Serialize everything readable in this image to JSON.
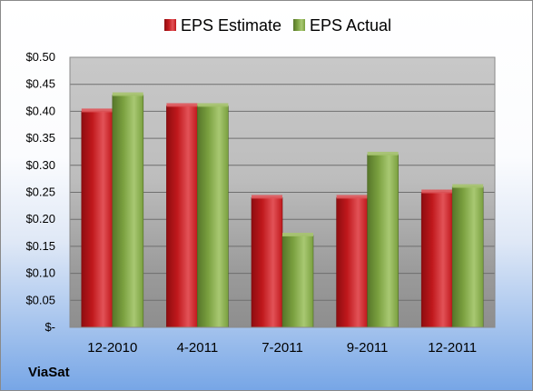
{
  "company": "ViaSat",
  "chart_data": {
    "type": "bar",
    "categories": [
      "12-2010",
      "4-2011",
      "7-2011",
      "9-2011",
      "12-2011"
    ],
    "series": [
      {
        "name": "EPS Estimate",
        "values": [
          0.4,
          0.41,
          0.24,
          0.24,
          0.25
        ],
        "color": "#c0181c"
      },
      {
        "name": "EPS Actual",
        "values": [
          0.43,
          0.41,
          0.17,
          0.32,
          0.26
        ],
        "color": "#7aa03f"
      }
    ],
    "yticks": [
      "$-",
      "$0.05",
      "$0.10",
      "$0.15",
      "$0.20",
      "$0.25",
      "$0.30",
      "$0.35",
      "$0.40",
      "$0.45",
      "$0.50"
    ],
    "ylim": [
      0,
      0.5
    ],
    "grid": true,
    "legend": "top",
    "plot_background": "gradient gray"
  }
}
